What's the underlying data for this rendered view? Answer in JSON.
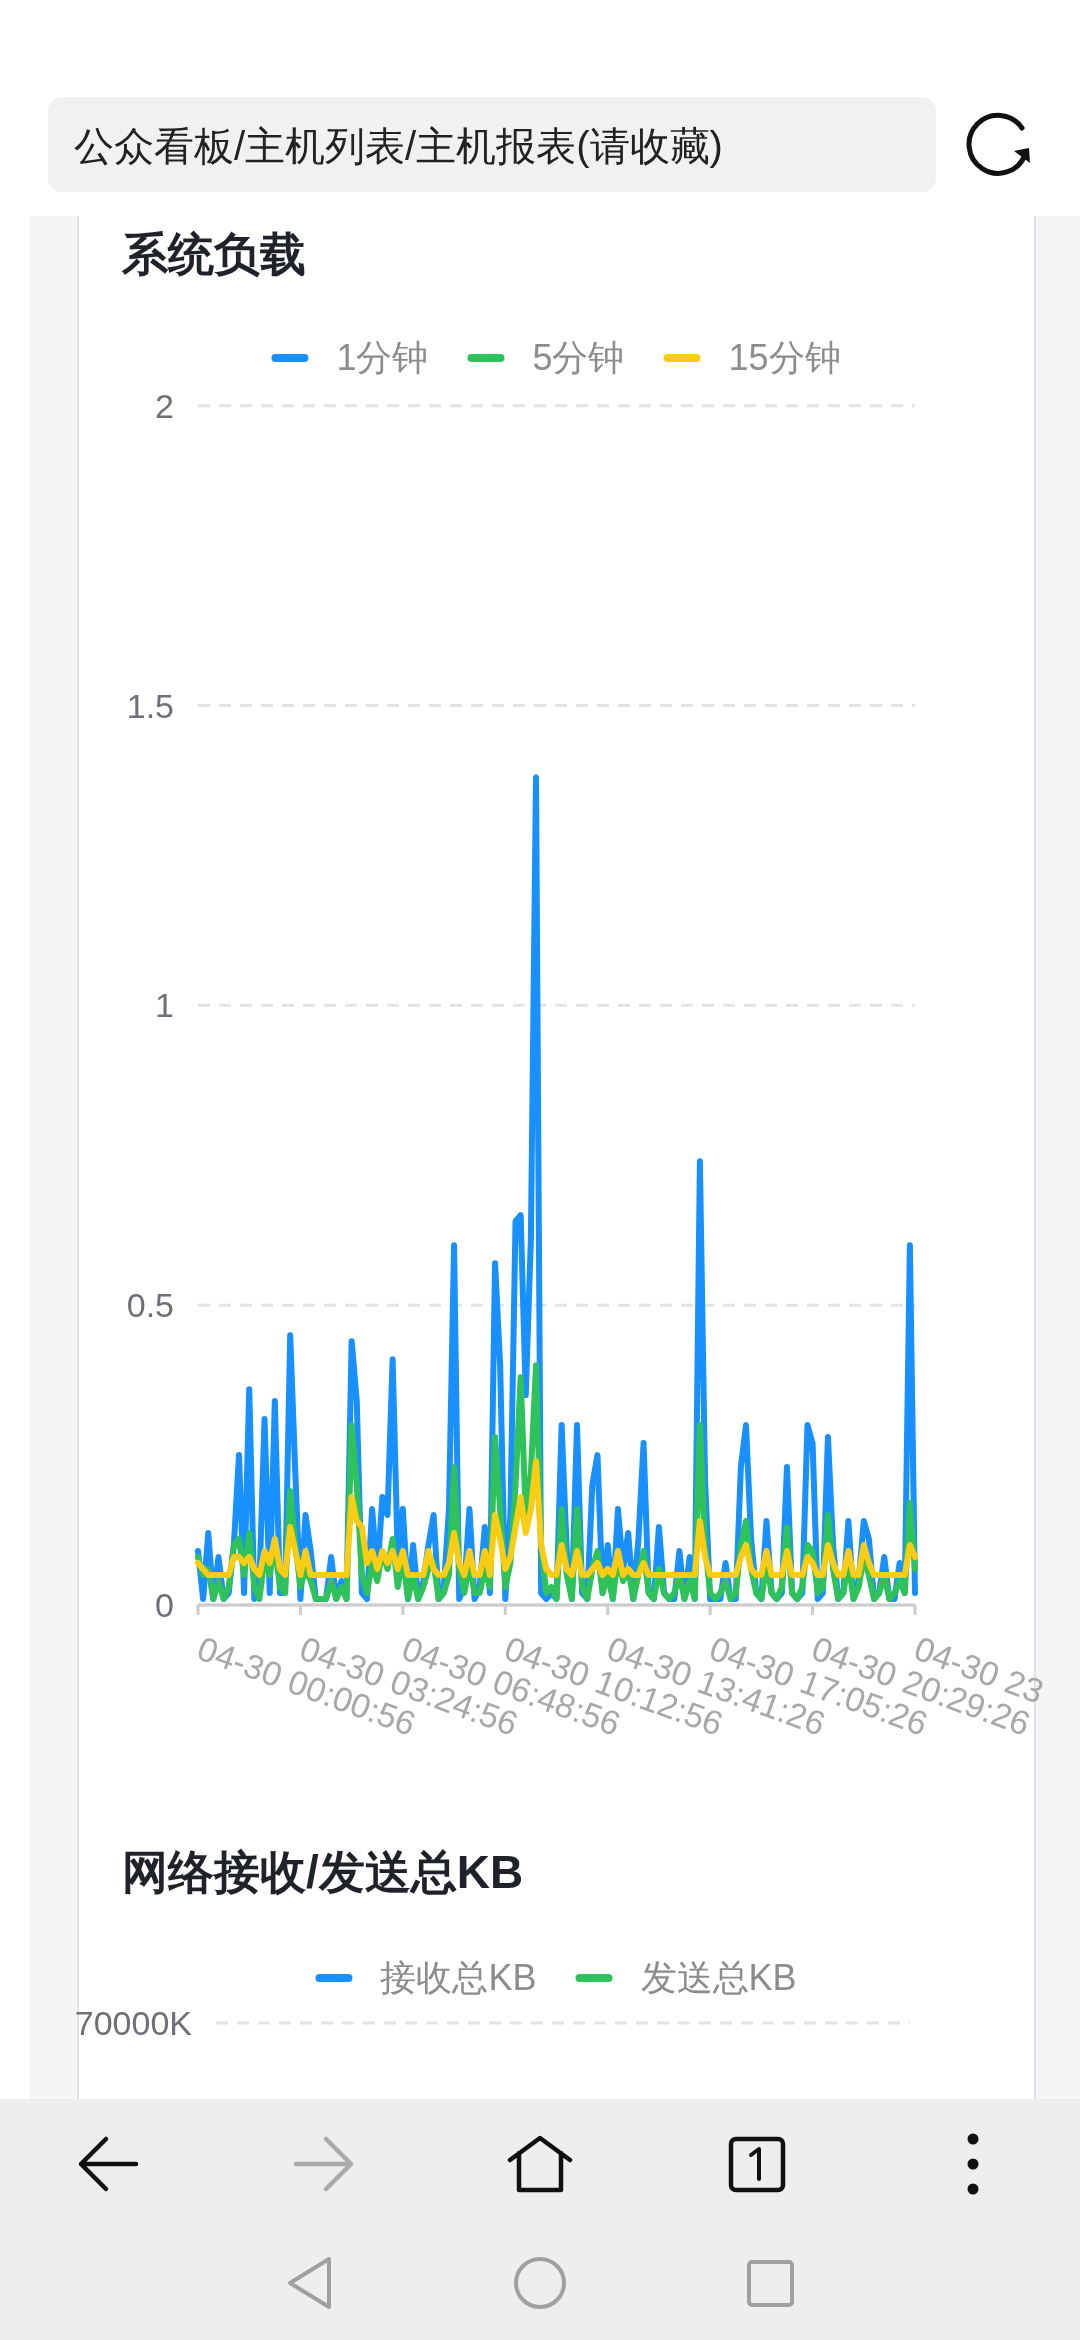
{
  "chart_data": [
    {
      "type": "line",
      "title": "系统负载",
      "annotations": [
        "公众看板/主机列表/主机报表(请收藏)"
      ],
      "categories": [
        "04-30 00:00:56",
        null,
        null,
        null,
        null,
        null,
        null,
        null,
        null,
        null,
        null,
        null,
        null,
        null,
        null,
        null,
        null,
        null,
        null,
        null,
        "04-30 03:24:56",
        null,
        null,
        null,
        null,
        null,
        null,
        null,
        null,
        null,
        null,
        null,
        null,
        null,
        null,
        null,
        null,
        null,
        null,
        null,
        "04-30 06:48:56",
        null,
        null,
        null,
        null,
        null,
        null,
        null,
        null,
        null,
        null,
        null,
        null,
        null,
        null,
        null,
        null,
        null,
        null,
        null,
        "04-30 10:12:56",
        null,
        null,
        null,
        null,
        null,
        null,
        null,
        null,
        null,
        null,
        null,
        null,
        null,
        null,
        null,
        null,
        null,
        null,
        null,
        "04-30 13:41:26",
        null,
        null,
        null,
        null,
        null,
        null,
        null,
        null,
        null,
        null,
        null,
        null,
        null,
        null,
        null,
        null,
        null,
        null,
        null,
        "04-30 17:05:26",
        null,
        null,
        null,
        null,
        null,
        null,
        null,
        null,
        null,
        null,
        null,
        null,
        null,
        null,
        null,
        null,
        null,
        null,
        null,
        "04-30 20:29:26",
        null,
        null,
        null,
        null,
        null,
        null,
        null,
        null,
        null,
        null,
        null,
        null,
        null,
        null,
        null,
        null,
        null,
        null,
        null,
        "04-30 23"
      ],
      "series": [
        {
          "name": "1分钟",
          "color": "#1890ff",
          "values": [
            0.09,
            0.01,
            0.12,
            0.01,
            0.08,
            0.01,
            0.02,
            0.1,
            0.25,
            0.02,
            0.36,
            0.01,
            0.04,
            0.31,
            0.02,
            0.34,
            0.02,
            0.02,
            0.45,
            0.22,
            0.01,
            0.15,
            0.09,
            0.01,
            0.01,
            0.01,
            0.08,
            0.01,
            0.04,
            0.01,
            0.44,
            0.34,
            0.02,
            0.01,
            0.16,
            0.05,
            0.18,
            0.15,
            0.41,
            0.08,
            0.16,
            0.01,
            0.1,
            0.01,
            0.04,
            0.1,
            0.15,
            0.01,
            0.03,
            0.16,
            0.6,
            0.01,
            0.03,
            0.16,
            0.01,
            0.03,
            0.13,
            0.02,
            0.57,
            0.4,
            0.01,
            0.15,
            0.64,
            0.65,
            0.35,
            0.61,
            1.38,
            0.02,
            0.01,
            0.02,
            0.01,
            0.3,
            0.09,
            0.01,
            0.3,
            0.02,
            0.01,
            0.2,
            0.25,
            0.02,
            0.1,
            0.01,
            0.16,
            0.06,
            0.12,
            0.01,
            0.11,
            0.27,
            0.02,
            0.01,
            0.13,
            0.02,
            0.01,
            0.01,
            0.09,
            0.01,
            0.08,
            0.01,
            0.74,
            0.21,
            0.01,
            0.01,
            0.01,
            0.07,
            0.01,
            0.01,
            0.23,
            0.3,
            0.11,
            0.02,
            0.01,
            0.14,
            0.02,
            0.01,
            0.02,
            0.23,
            0.02,
            0.01,
            0.02,
            0.3,
            0.27,
            0.01,
            0.02,
            0.28,
            0.1,
            0.01,
            0.02,
            0.14,
            0.01,
            0.04,
            0.14,
            0.11,
            0.01,
            0.02,
            0.08,
            0.01,
            0.01,
            0.07,
            0.02,
            0.6,
            0.02
          ]
        },
        {
          "name": "5分钟",
          "color": "#2fc25b",
          "values": [
            0.08,
            0.05,
            0.06,
            0.01,
            0.04,
            0.01,
            0.03,
            0.1,
            0.11,
            0.05,
            0.12,
            0.03,
            0.01,
            0.08,
            0.05,
            0.1,
            0.03,
            0.02,
            0.19,
            0.1,
            0.03,
            0.06,
            0.04,
            0.01,
            0.01,
            0.01,
            0.04,
            0.01,
            0.03,
            0.01,
            0.3,
            0.2,
            0.05,
            0.02,
            0.07,
            0.04,
            0.09,
            0.06,
            0.11,
            0.03,
            0.08,
            0.01,
            0.05,
            0.01,
            0.03,
            0.06,
            0.07,
            0.01,
            0.02,
            0.05,
            0.23,
            0.06,
            0.02,
            0.07,
            0.02,
            0.02,
            0.06,
            0.03,
            0.28,
            0.16,
            0.03,
            0.07,
            0.2,
            0.38,
            0.15,
            0.22,
            0.4,
            0.1,
            0.02,
            0.03,
            0.01,
            0.16,
            0.05,
            0.01,
            0.16,
            0.03,
            0.01,
            0.06,
            0.09,
            0.02,
            0.05,
            0.01,
            0.08,
            0.04,
            0.06,
            0.01,
            0.05,
            0.09,
            0.02,
            0.01,
            0.06,
            0.02,
            0.01,
            0.02,
            0.05,
            0.01,
            0.04,
            0.01,
            0.3,
            0.1,
            0.02,
            0.01,
            0.02,
            0.04,
            0.01,
            0.02,
            0.1,
            0.14,
            0.06,
            0.02,
            0.01,
            0.07,
            0.02,
            0.01,
            0.03,
            0.13,
            0.02,
            0.01,
            0.03,
            0.1,
            0.09,
            0.02,
            0.03,
            0.15,
            0.06,
            0.01,
            0.02,
            0.07,
            0.01,
            0.03,
            0.08,
            0.05,
            0.01,
            0.02,
            0.05,
            0.01,
            0.02,
            0.04,
            0.02,
            0.17,
            0.06
          ]
        },
        {
          "name": "15分钟",
          "color": "#facc14",
          "values": [
            0.07,
            0.06,
            0.05,
            0.05,
            0.05,
            0.05,
            0.05,
            0.08,
            0.08,
            0.07,
            0.08,
            0.06,
            0.05,
            0.09,
            0.07,
            0.11,
            0.06,
            0.05,
            0.13,
            0.09,
            0.05,
            0.09,
            0.05,
            0.05,
            0.05,
            0.05,
            0.05,
            0.05,
            0.05,
            0.05,
            0.18,
            0.14,
            0.13,
            0.07,
            0.09,
            0.06,
            0.09,
            0.07,
            0.09,
            0.06,
            0.09,
            0.05,
            0.05,
            0.05,
            0.05,
            0.09,
            0.06,
            0.05,
            0.05,
            0.07,
            0.12,
            0.07,
            0.05,
            0.09,
            0.05,
            0.05,
            0.09,
            0.05,
            0.15,
            0.11,
            0.06,
            0.08,
            0.13,
            0.18,
            0.12,
            0.16,
            0.24,
            0.1,
            0.06,
            0.05,
            0.05,
            0.1,
            0.06,
            0.05,
            0.09,
            0.05,
            0.05,
            0.06,
            0.07,
            0.05,
            0.06,
            0.05,
            0.09,
            0.05,
            0.06,
            0.05,
            0.05,
            0.07,
            0.05,
            0.05,
            0.05,
            0.05,
            0.05,
            0.05,
            0.05,
            0.05,
            0.05,
            0.05,
            0.14,
            0.08,
            0.05,
            0.05,
            0.05,
            0.05,
            0.05,
            0.05,
            0.08,
            0.1,
            0.06,
            0.05,
            0.05,
            0.09,
            0.05,
            0.05,
            0.05,
            0.09,
            0.05,
            0.05,
            0.05,
            0.08,
            0.07,
            0.05,
            0.05,
            0.1,
            0.07,
            0.05,
            0.05,
            0.09,
            0.05,
            0.05,
            0.1,
            0.07,
            0.05,
            0.05,
            0.05,
            0.05,
            0.05,
            0.05,
            0.05,
            0.1,
            0.08
          ]
        }
      ],
      "ylim": [
        0,
        2
      ],
      "yticks": [
        0,
        0.5,
        1,
        1.5,
        2
      ],
      "grid": "y",
      "legend": "top"
    },
    {
      "type": "other",
      "title": "网络接收/发送总KB",
      "annotations": [
        "70000K"
      ],
      "series": [
        {
          "name": "接收总KB",
          "color": "#1890ff"
        },
        {
          "name": "发送总KB",
          "color": "#2fc25b"
        }
      ],
      "legend": "top"
    }
  ]
}
